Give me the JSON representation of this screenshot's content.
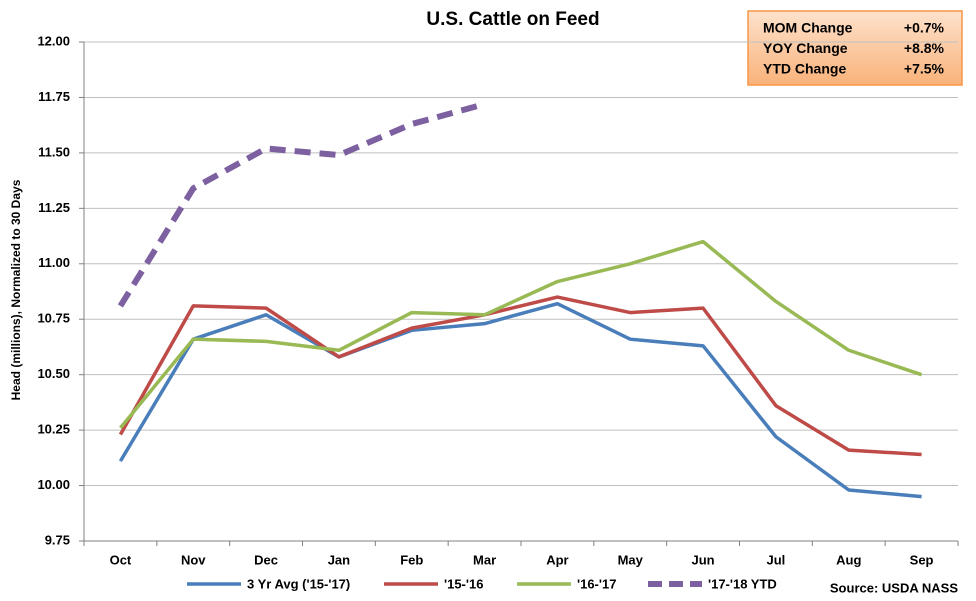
{
  "chart_data": {
    "type": "line",
    "title": "U.S. Cattle on Feed",
    "y_label": "Head (millions), Normalized to 30 Days",
    "source": "Source: USDA NASS",
    "categories": [
      "Oct",
      "Nov",
      "Dec",
      "Jan",
      "Feb",
      "Mar",
      "Apr",
      "May",
      "Jun",
      "Jul",
      "Aug",
      "Sep"
    ],
    "series": [
      {
        "name": "3 Yr Avg ('15-'17)",
        "color": "#4a7ebb",
        "values": [
          10.11,
          10.66,
          10.77,
          10.58,
          10.7,
          10.73,
          10.82,
          10.66,
          10.63,
          10.22,
          9.98,
          9.95
        ]
      },
      {
        "name": "'15-'16",
        "color": "#be4b48",
        "values": [
          10.23,
          10.81,
          10.8,
          10.58,
          10.71,
          10.77,
          10.85,
          10.78,
          10.8,
          10.36,
          10.16,
          10.14
        ]
      },
      {
        "name": "'16-'17",
        "color": "#98b954",
        "values": [
          10.26,
          10.66,
          10.65,
          10.61,
          10.78,
          10.77,
          10.92,
          11.0,
          11.1,
          10.83,
          10.61,
          10.5
        ]
      },
      {
        "name": "'17-'18 YTD",
        "color": "#7d60a0",
        "dashed": true,
        "values": [
          10.81,
          11.34,
          11.52,
          11.49,
          11.63,
          11.72,
          null,
          null,
          null,
          null,
          null,
          null
        ]
      }
    ],
    "ylim": [
      9.75,
      12
    ],
    "yticks": [
      {
        "value": 9.75,
        "label": "9.75"
      },
      {
        "value": 10,
        "label": "10.00"
      },
      {
        "value": 10.25,
        "label": "10.25"
      },
      {
        "value": 10.5,
        "label": "10.50"
      },
      {
        "value": 10.75,
        "label": "10.75"
      },
      {
        "value": 11,
        "label": "11.00"
      },
      {
        "value": 11.25,
        "label": "11.25"
      },
      {
        "value": 11.5,
        "label": "11.50"
      },
      {
        "value": 11.75,
        "label": "11.75"
      },
      {
        "value": 12,
        "label": "12.00"
      }
    ],
    "grid": true,
    "legend": "bottom",
    "annotations": [
      {
        "label": "MOM Change",
        "value": "+0.7%"
      },
      {
        "label": "YOY Change",
        "value": "+8.8%"
      },
      {
        "label": "YTD Change",
        "value": "+7.5%"
      }
    ]
  }
}
